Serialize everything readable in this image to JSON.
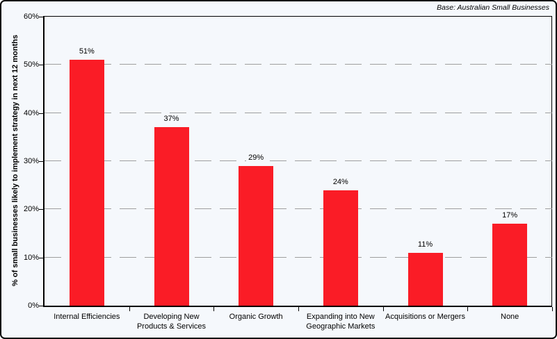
{
  "header": {
    "base_note": "Base: Australian Small Businesses"
  },
  "chart_data": {
    "type": "bar",
    "title": "",
    "categories": [
      "Internal Efficiencies",
      "Developing New\nProducts & Services",
      "Organic Growth",
      "Expanding into New\nGeographic Markets",
      "Acquisitions or Mergers",
      "None"
    ],
    "values": [
      51,
      37,
      29,
      24,
      11,
      17
    ],
    "data_labels": [
      "51%",
      "37%",
      "29%",
      "24%",
      "11%",
      "17%"
    ],
    "xlabel": "",
    "ylabel": "% of small businesses likely to implement strategy in next 12 months",
    "ylim": [
      0,
      60
    ],
    "y_tick_step": 10,
    "y_tick_labels": [
      "0%",
      "10%",
      "20%",
      "30%",
      "40%",
      "50%",
      "60%"
    ],
    "grid": "horizontal-dashed",
    "legend": "none",
    "colors": {
      "bar": "#fa1c26",
      "plot_background": "#f5f8fc",
      "gridline": "#9e9e9e",
      "axis": "#000000"
    }
  }
}
